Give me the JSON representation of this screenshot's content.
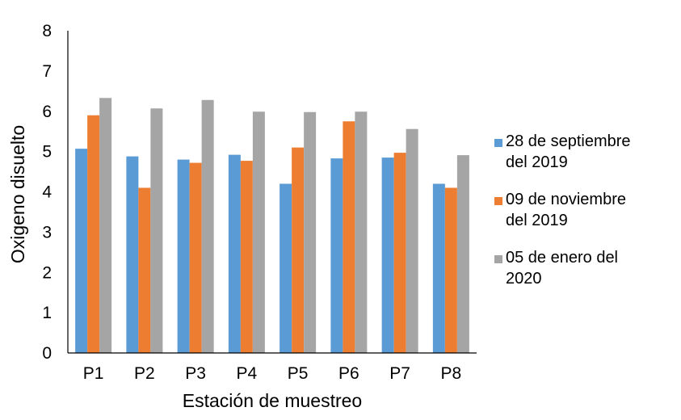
{
  "chart_data": {
    "type": "bar",
    "title": "",
    "xlabel": "Estación de muestreo",
    "ylabel": "Oxigeno disuelto",
    "ylim": [
      0,
      8
    ],
    "yticks": [
      "0",
      "1",
      "2",
      "3",
      "4",
      "5",
      "6",
      "7",
      "8"
    ],
    "grid": false,
    "legend_position": "right",
    "categories": [
      "P1",
      "P2",
      "P3",
      "P4",
      "P5",
      "P6",
      "P7",
      "P8"
    ],
    "series": [
      {
        "name": "28 de septiembre del 2019",
        "name_lines": [
          "28 de septiembre",
          "del 2019"
        ],
        "color": "#5b9bd5",
        "values": [
          5.07,
          4.88,
          4.8,
          4.92,
          4.2,
          4.83,
          4.85,
          4.2
        ]
      },
      {
        "name": "09 de noviembre del 2019",
        "name_lines": [
          "09 de noviembre",
          "del 2019"
        ],
        "color": "#ed7d31",
        "values": [
          5.9,
          4.1,
          4.72,
          4.77,
          5.1,
          5.75,
          4.97,
          4.1
        ]
      },
      {
        "name": "05 de enero del 2020",
        "name_lines": [
          "05 de enero del",
          "2020"
        ],
        "color": "#a5a5a5",
        "values": [
          6.33,
          6.07,
          6.28,
          5.99,
          5.98,
          5.99,
          5.56,
          4.91
        ]
      }
    ]
  }
}
